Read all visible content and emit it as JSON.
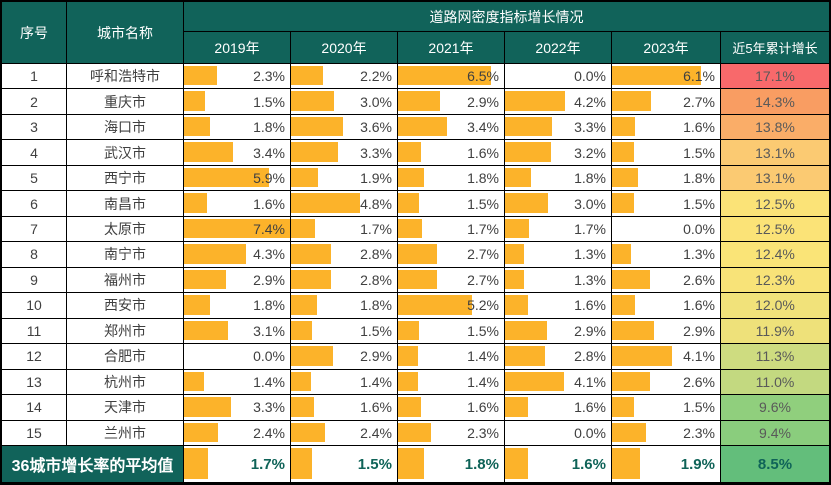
{
  "colors": {
    "header_bg": "#11635A",
    "grid": "#000000",
    "bar": "#FCB32A",
    "value_text": "#404040",
    "cum_text": "#595959",
    "avg_text": "#0F6358"
  },
  "chart_data": {
    "type": "table",
    "title": "道路网密度指标增长情况",
    "columns": [
      "序号",
      "城市名称",
      "2019年",
      "2020年",
      "2021年",
      "2022年",
      "2023年",
      "近5年累计增长"
    ],
    "bar_scale_max_percent": 7.4,
    "rows": [
      [
        "1",
        "呼和浩特市",
        "2.3%",
        "2.2%",
        "6.5%",
        "0.0%",
        "6.1%",
        "17.1%"
      ],
      [
        "2",
        "重庆市",
        "1.5%",
        "3.0%",
        "2.9%",
        "4.2%",
        "2.7%",
        "14.3%"
      ],
      [
        "3",
        "海口市",
        "1.8%",
        "3.6%",
        "3.4%",
        "3.3%",
        "1.6%",
        "13.8%"
      ],
      [
        "4",
        "武汉市",
        "3.4%",
        "3.3%",
        "1.6%",
        "3.2%",
        "1.5%",
        "13.1%"
      ],
      [
        "5",
        "西宁市",
        "5.9%",
        "1.9%",
        "1.8%",
        "1.8%",
        "1.8%",
        "13.1%"
      ],
      [
        "6",
        "南昌市",
        "1.6%",
        "4.8%",
        "1.5%",
        "3.0%",
        "1.5%",
        "12.5%"
      ],
      [
        "7",
        "太原市",
        "7.4%",
        "1.7%",
        "1.7%",
        "1.7%",
        "0.0%",
        "12.5%"
      ],
      [
        "8",
        "南宁市",
        "4.3%",
        "2.8%",
        "2.7%",
        "1.3%",
        "1.3%",
        "12.4%"
      ],
      [
        "9",
        "福州市",
        "2.9%",
        "2.8%",
        "2.7%",
        "1.3%",
        "2.6%",
        "12.3%"
      ],
      [
        "10",
        "西安市",
        "1.8%",
        "1.8%",
        "5.2%",
        "1.6%",
        "1.6%",
        "12.0%"
      ],
      [
        "11",
        "郑州市",
        "3.1%",
        "1.5%",
        "1.5%",
        "2.9%",
        "2.9%",
        "11.9%"
      ],
      [
        "12",
        "合肥市",
        "0.0%",
        "2.9%",
        "1.4%",
        "2.8%",
        "4.1%",
        "11.3%"
      ],
      [
        "13",
        "杭州市",
        "1.4%",
        "1.4%",
        "1.4%",
        "4.1%",
        "2.6%",
        "11.0%"
      ],
      [
        "14",
        "天津市",
        "3.3%",
        "1.6%",
        "1.6%",
        "1.6%",
        "1.5%",
        "9.6%"
      ],
      [
        "15",
        "兰州市",
        "2.4%",
        "2.4%",
        "2.3%",
        "0.0%",
        "2.3%",
        "9.4%"
      ]
    ],
    "cumulative_cell_colors": [
      "#F8696B",
      "#F99D62",
      "#FAAD68",
      "#FBCA72",
      "#FBCA72",
      "#FBE377",
      "#FBE377",
      "#FAE477",
      "#F8E378",
      "#F1E27A",
      "#EEE17A",
      "#CEDC80",
      "#C3D980",
      "#90CF7D",
      "#8ACD7D"
    ],
    "average_row": [
      "36城市增长率的平均值",
      "1.7%",
      "1.5%",
      "1.8%",
      "1.6%",
      "1.9%",
      "8.5%"
    ],
    "average_cum_color": "#63BE7B"
  }
}
